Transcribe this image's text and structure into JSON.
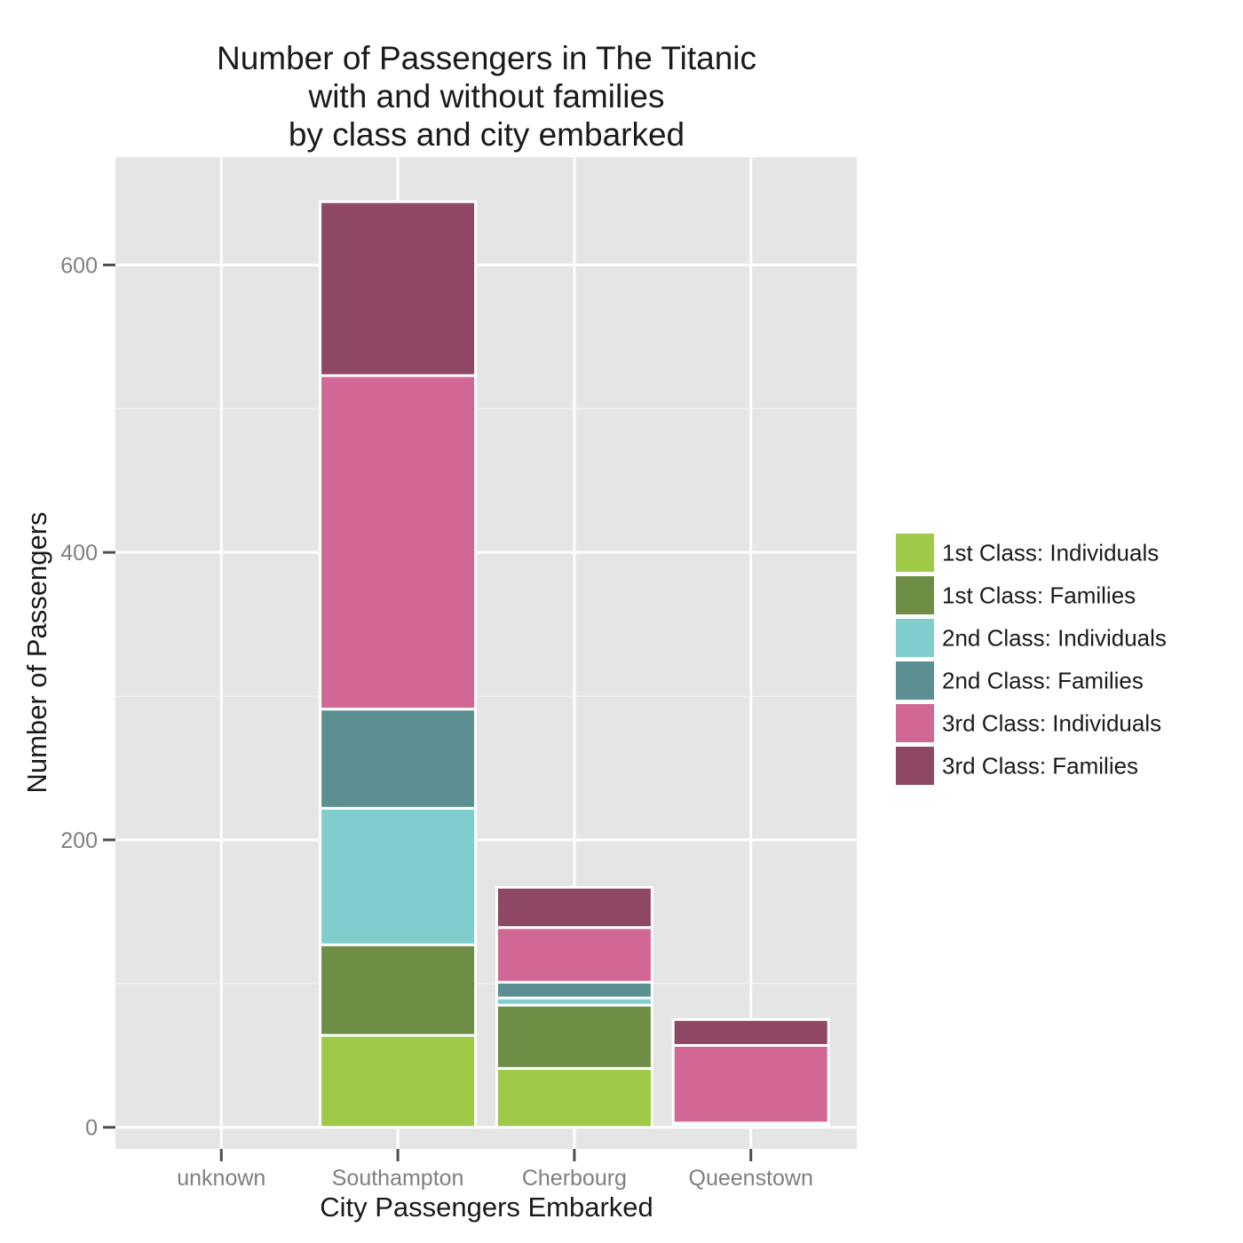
{
  "chart_data": {
    "type": "bar",
    "stacked": true,
    "title_lines": [
      "Number of Passengers in The Titanic",
      "with and without families",
      "by class and city embarked"
    ],
    "xlabel": "City Passengers Embarked",
    "ylabel": "Number  of Passengers",
    "ylim": [
      -15,
      675
    ],
    "yticks": [
      0,
      200,
      400,
      600
    ],
    "grid": true,
    "legend_position": "right",
    "categories": [
      "unknown",
      "Southampton",
      "Cherbourg",
      "Queenstown"
    ],
    "series": [
      {
        "name": "1st Class: Individuals",
        "color": "#9ECA48",
        "values": [
          0,
          64,
          41,
          0
        ]
      },
      {
        "name": "1st Class: Families",
        "color": "#6E8E45",
        "values": [
          0,
          63,
          44,
          0
        ]
      },
      {
        "name": "2nd Class: Individuals",
        "color": "#80CDCD",
        "values": [
          0,
          95,
          5,
          2
        ]
      },
      {
        "name": "2nd Class: Families",
        "color": "#5C8F91",
        "values": [
          0,
          69,
          11,
          1
        ]
      },
      {
        "name": "3rd Class: Individuals",
        "color": "#D06794",
        "values": [
          0,
          232,
          38,
          54
        ]
      },
      {
        "name": "3rd Class: Families",
        "color": "#8E4764",
        "values": [
          0,
          121,
          28,
          18
        ]
      }
    ]
  },
  "colors": {
    "panel_background": "#E5E5E5",
    "grid_major": "#FFFFFF",
    "grid_minor": "#F2F2F2",
    "bar_separator": "#FFFFFF"
  }
}
